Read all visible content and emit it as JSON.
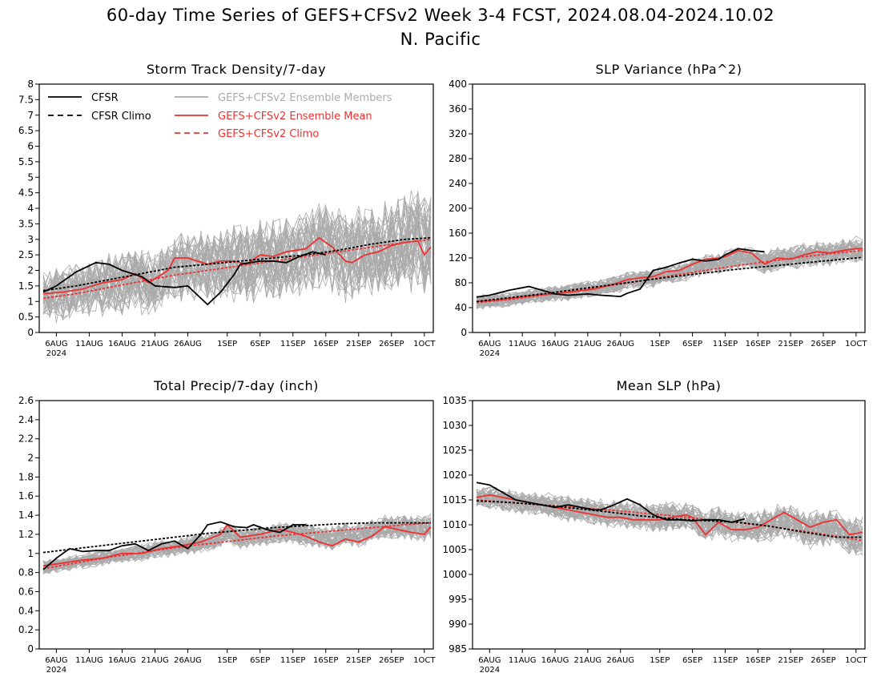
{
  "title": "60-day Time Series of GEFS+CFSv2 Week 3-4 FCST, 2024.08.04-2024.10.02",
  "subtitle": "N. Pacific",
  "legend": {
    "cfsr": "CFSR",
    "cfsr_climo": "CFSR Climo",
    "members": "GEFS+CFSv2 Ensemble Members",
    "ens_mean": "GEFS+CFSv2 Ensemble Mean",
    "model_climo": "GEFS+CFSv2 Climo"
  },
  "colors": {
    "cfsr": "#000000",
    "members": "#aaaaaa",
    "ens_mean": "#f03030",
    "model_climo": "#f03030",
    "frame": "#000000"
  },
  "x_axis": {
    "ticks": [
      "6AUG",
      "11AUG",
      "16AUG",
      "21AUG",
      "26AUG",
      "1SEP",
      "6SEP",
      "11SEP",
      "16SEP",
      "21SEP",
      "26SEP",
      "1OCT"
    ],
    "tick_year": "2024",
    "start_date": "2024-08-04",
    "end_date": "2024-10-02",
    "n_days": 60
  },
  "chart_data": [
    {
      "id": "storm",
      "type": "line",
      "title": "Storm Track Density/7-day",
      "ylim": [
        0,
        8
      ],
      "yticks": [
        "0",
        "0.5",
        "1",
        "1.5",
        "2",
        "2.5",
        "3",
        "3.5",
        "4",
        "4.5",
        "5",
        "5.5",
        "6",
        "6.5",
        "7",
        "7.5",
        "8"
      ],
      "show_legend": true,
      "members_spread": 1.15,
      "series": [
        {
          "name": "CFSR",
          "style": "solid-black",
          "x_days": [
            0,
            2,
            5,
            8,
            10,
            12,
            15,
            17,
            20,
            22,
            25,
            27,
            29,
            30,
            33,
            35,
            37,
            39,
            41,
            43
          ],
          "values": [
            1.3,
            1.5,
            1.95,
            2.25,
            2.2,
            2.0,
            1.8,
            1.5,
            1.45,
            1.5,
            0.9,
            1.3,
            1.85,
            2.2,
            2.3,
            2.3,
            2.25,
            2.45,
            2.6,
            2.5
          ]
        },
        {
          "name": "CFSR Climo",
          "style": "dash-black",
          "x_days": [
            0,
            5,
            10,
            15,
            20,
            25,
            30,
            35,
            40,
            45,
            50,
            55,
            59
          ],
          "values": [
            1.35,
            1.5,
            1.7,
            1.9,
            2.1,
            2.2,
            2.3,
            2.4,
            2.5,
            2.65,
            2.85,
            3.0,
            3.05
          ]
        },
        {
          "name": "GEFS+CFSv2 Ensemble Mean",
          "style": "solid-red",
          "x_days": [
            0,
            3,
            6,
            9,
            12,
            14,
            16,
            19,
            20,
            22,
            25,
            27,
            29,
            31,
            33,
            35,
            37,
            40,
            42,
            44,
            46,
            47,
            49,
            51,
            53,
            55,
            57,
            58,
            59
          ],
          "values": [
            1.25,
            1.3,
            1.4,
            1.6,
            1.7,
            1.9,
            1.6,
            2.0,
            2.4,
            2.4,
            2.2,
            2.3,
            2.3,
            2.2,
            2.5,
            2.45,
            2.6,
            2.7,
            3.05,
            2.75,
            2.3,
            2.25,
            2.5,
            2.6,
            2.8,
            2.9,
            2.95,
            2.5,
            2.75
          ]
        },
        {
          "name": "GEFS+CFSv2 Climo",
          "style": "dash-red",
          "x_days": [
            0,
            5,
            10,
            15,
            20,
            25,
            30,
            35,
            40,
            45,
            50,
            55,
            59
          ],
          "values": [
            1.1,
            1.25,
            1.45,
            1.65,
            1.85,
            2.0,
            2.15,
            2.3,
            2.45,
            2.6,
            2.75,
            2.9,
            3.0
          ]
        }
      ]
    },
    {
      "id": "slpvar",
      "type": "line",
      "title": "SLP Variance (hPa^2)",
      "ylim": [
        0,
        400
      ],
      "yticks": [
        "0",
        "40",
        "80",
        "120",
        "160",
        "200",
        "240",
        "280",
        "320",
        "360",
        "400"
      ],
      "show_legend": false,
      "members_spread": 0.3,
      "series": [
        {
          "name": "CFSR",
          "style": "solid-black",
          "x_days": [
            0,
            2,
            5,
            8,
            10,
            12,
            14,
            17,
            19,
            22,
            23,
            25,
            27,
            29,
            31,
            33,
            35,
            37,
            38,
            40,
            42,
            44
          ],
          "values": [
            57,
            60,
            68,
            74,
            68,
            62,
            60,
            62,
            60,
            58,
            63,
            70,
            100,
            105,
            112,
            118,
            115,
            118,
            125,
            135,
            132,
            130
          ]
        },
        {
          "name": "CFSR Climo",
          "style": "dash-black",
          "x_days": [
            0,
            5,
            10,
            15,
            20,
            25,
            30,
            35,
            40,
            45,
            50,
            55,
            59
          ],
          "values": [
            50,
            56,
            62,
            69,
            76,
            83,
            90,
            96,
            102,
            107,
            112,
            117,
            121
          ]
        },
        {
          "name": "GEFS+CFSv2 Ensemble Mean",
          "style": "solid-red",
          "x_days": [
            0,
            3,
            6,
            9,
            12,
            15,
            18,
            21,
            23,
            25,
            27,
            29,
            31,
            33,
            35,
            37,
            38,
            40,
            42,
            44,
            46,
            48,
            50,
            52,
            54,
            56,
            58,
            59
          ],
          "values": [
            50,
            52,
            56,
            60,
            62,
            66,
            70,
            78,
            85,
            88,
            90,
            98,
            100,
            110,
            118,
            120,
            122,
            132,
            128,
            110,
            120,
            118,
            125,
            130,
            128,
            132,
            135,
            135
          ]
        },
        {
          "name": "GEFS+CFSv2 Climo",
          "style": "dash-red",
          "x_days": [
            0,
            5,
            10,
            15,
            20,
            25,
            30,
            35,
            40,
            45,
            50,
            55,
            59
          ],
          "values": [
            48,
            53,
            60,
            67,
            75,
            83,
            92,
            100,
            108,
            115,
            122,
            128,
            132
          ]
        }
      ]
    },
    {
      "id": "precip",
      "type": "line",
      "title": "Total Precip/7-day (inch)",
      "ylim": [
        0,
        2.6
      ],
      "yticks": [
        "0",
        "0.2",
        "0.4",
        "0.6",
        "0.8",
        "1",
        "1.2",
        "1.4",
        "1.6",
        "1.8",
        "2",
        "2.2",
        "2.4",
        "2.6"
      ],
      "show_legend": false,
      "members_spread": 0.3,
      "series": [
        {
          "name": "CFSR",
          "style": "solid-black",
          "x_days": [
            0,
            2,
            4,
            6,
            8,
            10,
            12,
            14,
            16,
            18,
            20,
            22,
            24,
            25,
            27,
            29,
            31,
            32,
            34,
            36,
            38,
            40
          ],
          "values": [
            0.83,
            0.95,
            1.05,
            1.02,
            1.03,
            1.03,
            1.08,
            1.1,
            1.03,
            1.1,
            1.13,
            1.05,
            1.2,
            1.3,
            1.33,
            1.28,
            1.27,
            1.3,
            1.25,
            1.22,
            1.3,
            1.3
          ]
        },
        {
          "name": "CFSR Climo",
          "style": "dash-black",
          "x_days": [
            0,
            5,
            10,
            15,
            20,
            25,
            30,
            35,
            40,
            45,
            50,
            55,
            59
          ],
          "values": [
            1.01,
            1.05,
            1.09,
            1.13,
            1.17,
            1.21,
            1.24,
            1.27,
            1.29,
            1.31,
            1.32,
            1.32,
            1.32
          ]
        },
        {
          "name": "GEFS+CFSv2 Ensemble Mean",
          "style": "solid-red",
          "x_days": [
            0,
            3,
            6,
            9,
            12,
            15,
            18,
            21,
            24,
            27,
            28,
            30,
            33,
            36,
            38,
            40,
            42,
            44,
            46,
            48,
            50,
            52,
            54,
            56,
            58,
            59
          ],
          "values": [
            0.87,
            0.9,
            0.93,
            0.95,
            1.0,
            1.0,
            1.05,
            1.08,
            1.12,
            1.2,
            1.3,
            1.17,
            1.2,
            1.25,
            1.22,
            1.18,
            1.12,
            1.08,
            1.15,
            1.12,
            1.18,
            1.28,
            1.25,
            1.22,
            1.2,
            1.28
          ]
        },
        {
          "name": "GEFS+CFSv2 Climo",
          "style": "dash-red",
          "x_days": [
            0,
            5,
            10,
            15,
            20,
            25,
            30,
            35,
            40,
            45,
            50,
            55,
            59
          ],
          "values": [
            0.84,
            0.9,
            0.96,
            1.01,
            1.06,
            1.1,
            1.14,
            1.18,
            1.21,
            1.24,
            1.27,
            1.3,
            1.32
          ]
        }
      ]
    },
    {
      "id": "mslp",
      "type": "line",
      "title": "Mean SLP (hPa)",
      "ylim": [
        985,
        1035
      ],
      "yticks": [
        "985",
        "990",
        "995",
        "1000",
        "1005",
        "1010",
        "1015",
        "1020",
        "1025",
        "1030",
        "1035"
      ],
      "show_legend": false,
      "members_spread": 0.45,
      "series": [
        {
          "name": "CFSR",
          "style": "solid-black",
          "x_days": [
            0,
            2,
            4,
            6,
            8,
            10,
            12,
            14,
            16,
            18,
            19,
            21,
            23,
            25,
            27,
            29,
            31,
            33,
            35,
            37,
            39,
            41
          ],
          "values": [
            1018.5,
            1018,
            1016.5,
            1015,
            1014.5,
            1014,
            1013.5,
            1014,
            1013.5,
            1013,
            1013,
            1014,
            1015.2,
            1014,
            1012,
            1011,
            1011,
            1010.8,
            1011,
            1011,
            1010.5,
            1011.2
          ]
        },
        {
          "name": "CFSR Climo",
          "style": "dash-black",
          "x_days": [
            0,
            5,
            10,
            15,
            20,
            25,
            30,
            35,
            40,
            45,
            50,
            55,
            59
          ],
          "values": [
            1014.8,
            1014.5,
            1014,
            1013.3,
            1012.6,
            1011.8,
            1011.2,
            1010.8,
            1010.5,
            1009.7,
            1008.5,
            1007.5,
            1007.5
          ]
        },
        {
          "name": "GEFS+CFSv2 Ensemble Mean",
          "style": "solid-red",
          "x_days": [
            0,
            2,
            4,
            6,
            8,
            10,
            12,
            14,
            16,
            18,
            20,
            22,
            24,
            26,
            28,
            30,
            32,
            33,
            35,
            37,
            39,
            41,
            43,
            45,
            47,
            49,
            51,
            53,
            55,
            57,
            59
          ],
          "values": [
            1015.5,
            1016,
            1015.5,
            1015,
            1014.5,
            1014,
            1013.5,
            1013,
            1012.5,
            1012,
            1011.5,
            1011.5,
            1011,
            1011,
            1011,
            1011.5,
            1012,
            1011.5,
            1008,
            1010.5,
            1009,
            1009,
            1009.5,
            1011,
            1012.5,
            1011,
            1009.5,
            1010.5,
            1011,
            1008,
            1008.5
          ]
        },
        {
          "name": "GEFS+CFSv2 Climo",
          "style": "dash-red",
          "x_days": [
            0,
            5,
            10,
            15,
            20,
            25,
            30,
            35,
            40,
            45,
            50,
            55,
            59
          ],
          "values": [
            1015,
            1014.5,
            1014,
            1013.5,
            1013,
            1012.4,
            1011.8,
            1011.1,
            1010.4,
            1009.6,
            1008.7,
            1007.7,
            1006.8
          ]
        }
      ]
    }
  ]
}
